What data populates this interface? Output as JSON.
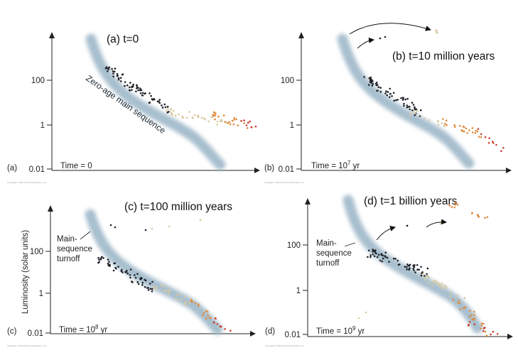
{
  "figure": {
    "y_axis_label": "Luminosity (solar units)",
    "panels": [
      {
        "id": "a",
        "title": "(a)   t=0",
        "letter": "(a)",
        "time_label": "Time = 0",
        "ticks": [
          "100",
          "1",
          "0.01"
        ],
        "band_label": "Zero-age main sequence",
        "turnoff_label": [],
        "copyright": "Copyright © 2010 Pearson Education, Inc."
      },
      {
        "id": "b",
        "title": "(b)   t=10 million years",
        "letter": "(b)",
        "time_label": "Time = 10",
        "time_exp": "7",
        "time_unit": " yr",
        "ticks": [
          "100",
          "1",
          "0.01"
        ],
        "band_label": "",
        "turnoff_label": [],
        "copyright": "Copyright © 2010 Pearson Education, Inc."
      },
      {
        "id": "c",
        "title": "(c)   t=100 million years",
        "letter": "(c)",
        "time_label": "Time = 10",
        "time_exp": "8",
        "time_unit": " yr",
        "ticks": [
          "100",
          "1",
          "0.01"
        ],
        "band_label": "",
        "turnoff_label": [
          "Main-",
          "sequence",
          "turnoff"
        ],
        "copyright": "Copyright © 2010 Pearson Education, Inc."
      },
      {
        "id": "d",
        "title": "(d)   t=1 billion years",
        "letter": "(d)",
        "time_label": "Time = 10",
        "time_exp": "9",
        "time_unit": " yr",
        "ticks": [
          "100",
          "1",
          "0.01"
        ],
        "band_label": "",
        "turnoff_label": [
          "Main-",
          "sequence",
          "turnoff"
        ],
        "copyright": "Copyright © 2010 Pearson Education, Inc."
      }
    ],
    "colors": {
      "band": "#9fb8c9",
      "hot_star": "#1f2126",
      "warm_star": "#d8c9a0",
      "cool_star": "#e08a3c",
      "red_star": "#c8402f",
      "white_star": "#f4f1ea"
    }
  }
}
